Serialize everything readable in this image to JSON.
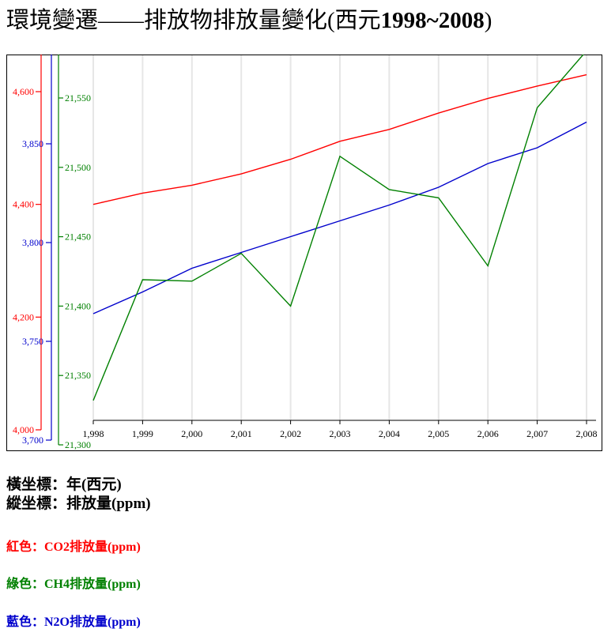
{
  "title": {
    "text": "環境變遷——排放物排放量變化(西元",
    "years": "1998~2008",
    "close": ")"
  },
  "notes": {
    "x_axis": "橫坐標：年(西元)",
    "y_axis": "縱坐標：排放量(ppm)"
  },
  "legend": [
    {
      "text": "紅色：CO2排放量(ppm)",
      "color": "#ff0000"
    },
    {
      "text": "綠色：CH4排放量(ppm)",
      "color": "#008000"
    },
    {
      "text": "藍色：N2O排放量(ppm)",
      "color": "#0000cc"
    }
  ],
  "chart_data": {
    "type": "line",
    "x": [
      1998,
      1999,
      2000,
      2001,
      2002,
      2003,
      2004,
      2005,
      2006,
      2007,
      2008
    ],
    "x_tick_labels": [
      "1,998",
      "1,999",
      "2,000",
      "2,001",
      "2,002",
      "2,003",
      "2,004",
      "2,005",
      "2,006",
      "2,007",
      "2,008"
    ],
    "grid": "vertical",
    "series": [
      {
        "key": "co2",
        "color": "#ff0000",
        "ylim": [
          4000,
          4650
        ],
        "ticks": [
          4000,
          4200,
          4400,
          4600
        ],
        "tick_labels": [
          "4,000",
          "4,200",
          "4,400",
          "4,600"
        ],
        "values": [
          4400,
          4420,
          4434,
          4454,
          4480,
          4512,
          4533,
          4562,
          4588,
          4610,
          4630
        ]
      },
      {
        "key": "n2o",
        "color": "#0000cc",
        "ylim": [
          3700,
          3900
        ],
        "ticks": [
          3700,
          3750,
          3800,
          3850
        ],
        "tick_labels": [
          "3,700",
          "3,750",
          "3,800",
          "3,850"
        ],
        "values": [
          3764,
          3775,
          3787,
          3795,
          3803,
          3811,
          3819,
          3828,
          3840,
          3848,
          3861
        ]
      },
      {
        "key": "ch4",
        "color": "#008000",
        "ylim": [
          21300,
          21580
        ],
        "ticks": [
          21300,
          21350,
          21400,
          21450,
          21500,
          21550
        ],
        "tick_labels": [
          "21,300",
          "21,350",
          "21,400",
          "21,450",
          "21,500",
          "21,550"
        ],
        "values": [
          21332,
          21419,
          21418,
          21438,
          21400,
          21508,
          21484,
          21478,
          21429,
          21543,
          21584
        ]
      }
    ]
  }
}
